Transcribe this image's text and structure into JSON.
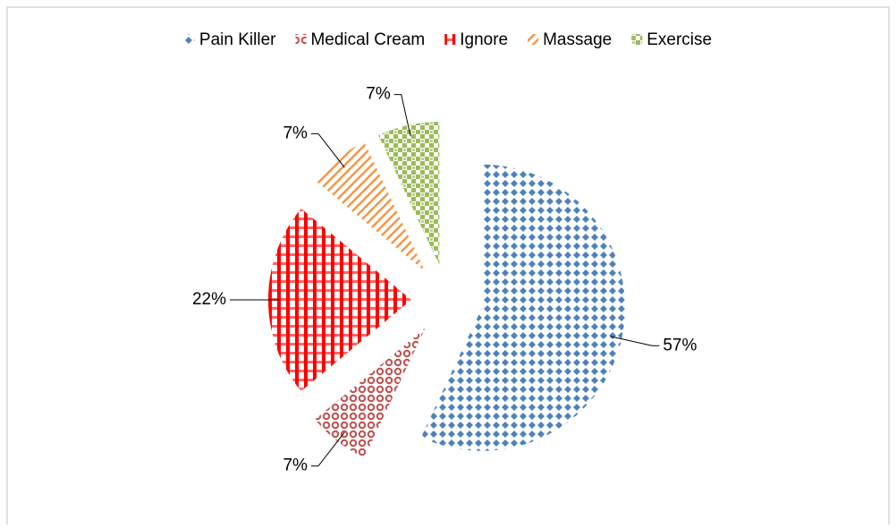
{
  "chart_data": {
    "type": "pie",
    "categories": [
      "Pain Killer",
      "Medical Cream",
      "Ignore",
      "Massage",
      "Exercise"
    ],
    "values": [
      57,
      7,
      22,
      7,
      7
    ],
    "value_labels": [
      "57%",
      "7%",
      "22%",
      "7%",
      "7%"
    ],
    "colors": [
      "#4f81bd",
      "#c0504d",
      "#ff0000",
      "#f79646",
      "#9bbb59"
    ],
    "legend": "top"
  }
}
